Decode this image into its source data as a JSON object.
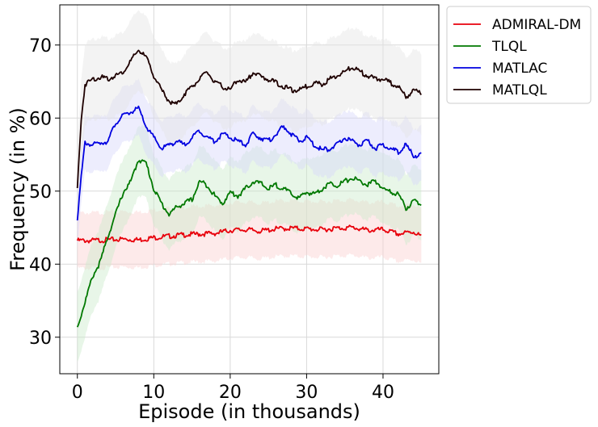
{
  "chart_data": {
    "type": "line",
    "title": "",
    "xlabel": "Episode (in thousands)",
    "ylabel": "Frequency (in %)",
    "xlim": [
      -2.3,
      47.3
    ],
    "ylim": [
      25,
      75.5
    ],
    "xticks": [
      0,
      10,
      20,
      30,
      40
    ],
    "yticks": [
      30,
      40,
      50,
      60,
      70
    ],
    "grid": true,
    "legend_position": "outside-top-right",
    "series": [
      {
        "name": "ADMIRAL-DM",
        "color": "#e8000b",
        "band_color": "#fbd0d0",
        "x": [
          0,
          2,
          4,
          6,
          8,
          10,
          12,
          14,
          16,
          18,
          20,
          22,
          24,
          26,
          28,
          30,
          32,
          34,
          36,
          38,
          40,
          42,
          44,
          45
        ],
        "y": [
          43.4,
          43.4,
          43.5,
          43.6,
          43.5,
          43.8,
          44.0,
          44.2,
          44.3,
          44.4,
          44.8,
          44.9,
          44.7,
          45.0,
          45.1,
          45.0,
          44.9,
          45.1,
          45.2,
          44.8,
          44.9,
          44.3,
          44.6,
          44.0
        ],
        "band": 3.8
      },
      {
        "name": "TLQL",
        "color": "#007800",
        "band_color": "#cdeccd",
        "x": [
          0,
          1,
          2,
          3,
          4,
          5,
          6,
          7,
          8,
          9,
          10,
          11,
          12,
          13,
          14,
          15,
          16,
          17,
          18,
          19,
          20,
          21,
          22,
          23,
          24,
          25,
          26,
          27,
          28,
          29,
          30,
          31,
          32,
          33,
          34,
          35,
          36,
          37,
          38,
          39,
          40,
          41,
          42,
          43,
          44,
          45
        ],
        "y": [
          31.5,
          35.0,
          38.5,
          40.5,
          44.0,
          47.0,
          50.0,
          51.5,
          54.5,
          54.0,
          50.5,
          48.5,
          47.0,
          48.0,
          48.5,
          49.0,
          51.5,
          51.0,
          49.5,
          48.5,
          50.0,
          49.5,
          50.5,
          51.5,
          51.2,
          50.5,
          51.0,
          50.5,
          49.8,
          49.2,
          50.0,
          49.8,
          50.5,
          51.2,
          51.0,
          51.5,
          52.0,
          51.5,
          51.0,
          51.6,
          50.5,
          50.0,
          49.8,
          47.8,
          48.8,
          48.5
        ],
        "band": 4.8
      },
      {
        "name": "MATLAC",
        "color": "#0000e0",
        "band_color": "#d6d6fa",
        "x": [
          0,
          0.5,
          1,
          2,
          3,
          4,
          5,
          6,
          7,
          8,
          9,
          10,
          11,
          12,
          13,
          14,
          15,
          16,
          17,
          18,
          19,
          20,
          21,
          22,
          23,
          24,
          25,
          26,
          27,
          28,
          29,
          30,
          31,
          32,
          33,
          34,
          35,
          36,
          37,
          38,
          39,
          40,
          41,
          42,
          43,
          44,
          45
        ],
        "y": [
          46.5,
          52.0,
          56.8,
          56.5,
          56.8,
          57.0,
          59.5,
          60.5,
          61.0,
          61.5,
          59.0,
          57.5,
          56.0,
          56.5,
          57.0,
          56.5,
          57.5,
          58.5,
          57.5,
          57.0,
          58.0,
          57.5,
          57.0,
          56.5,
          58.0,
          57.5,
          57.0,
          58.0,
          59.0,
          58.0,
          57.0,
          57.5,
          56.5,
          55.8,
          56.0,
          56.5,
          57.5,
          57.0,
          56.5,
          57.0,
          56.0,
          56.5,
          56.0,
          55.5,
          56.5,
          55.0,
          55.2
        ],
        "band": 3.8
      },
      {
        "name": "MATLQL",
        "color": "#1e0000",
        "band_color": "#e4e4e4",
        "x": [
          0,
          0.5,
          1,
          2,
          3,
          4,
          5,
          6,
          7,
          8,
          9,
          10,
          11,
          12,
          13,
          14,
          15,
          16,
          17,
          18,
          19,
          20,
          21,
          22,
          23,
          24,
          25,
          26,
          27,
          28,
          29,
          30,
          31,
          32,
          33,
          34,
          35,
          36,
          37,
          38,
          39,
          40,
          41,
          42,
          43,
          44,
          45
        ],
        "y": [
          50.5,
          60.0,
          64.8,
          65.5,
          65.8,
          65.5,
          66.0,
          66.5,
          68.0,
          69.5,
          68.5,
          66.0,
          64.0,
          62.5,
          62.0,
          63.5,
          64.5,
          65.5,
          66.5,
          65.0,
          64.5,
          64.0,
          65.5,
          65.0,
          66.5,
          65.8,
          65.5,
          65.0,
          64.5,
          64.0,
          64.0,
          64.5,
          65.0,
          64.8,
          65.5,
          66.0,
          66.5,
          67.2,
          66.5,
          66.0,
          65.5,
          65.5,
          65.0,
          64.5,
          63.0,
          64.0,
          63.5
        ],
        "band": 5.5
      }
    ]
  }
}
